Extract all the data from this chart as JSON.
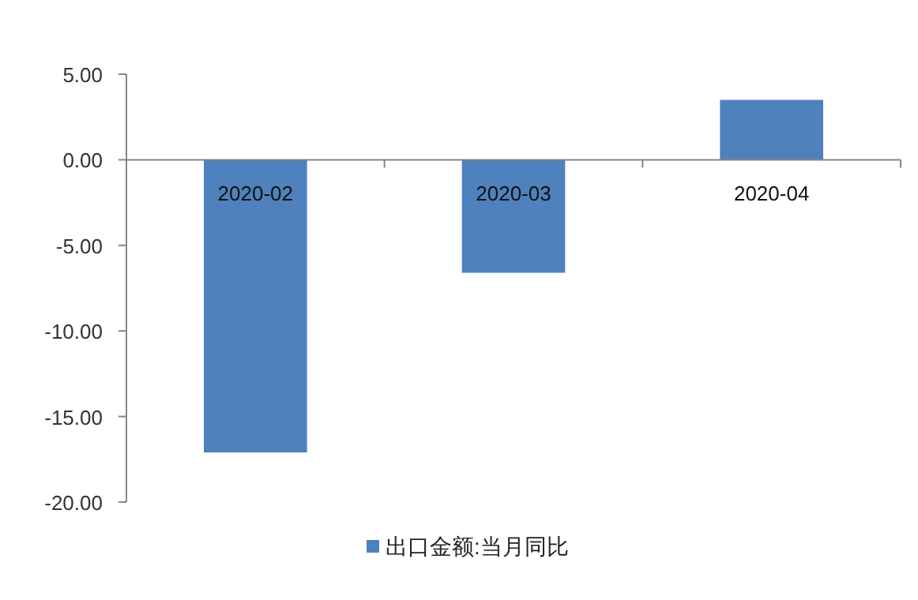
{
  "chart_data": {
    "type": "bar",
    "categories": [
      "2020-02",
      "2020-03",
      "2020-04"
    ],
    "series": [
      {
        "name": "出口金额:当月同比",
        "color": "#4f81bd",
        "values": [
          -17.1,
          -6.6,
          3.5
        ]
      }
    ],
    "ylim": [
      -20,
      5
    ],
    "yticks": [
      {
        "value": 5,
        "label": "5.00"
      },
      {
        "value": 0,
        "label": "0.00"
      },
      {
        "value": -5,
        "label": "-5.00"
      },
      {
        "value": -10,
        "label": "-10.00"
      },
      {
        "value": -15,
        "label": "-15.00"
      },
      {
        "value": -20,
        "label": "-20.00"
      }
    ],
    "legend": "bottom"
  }
}
